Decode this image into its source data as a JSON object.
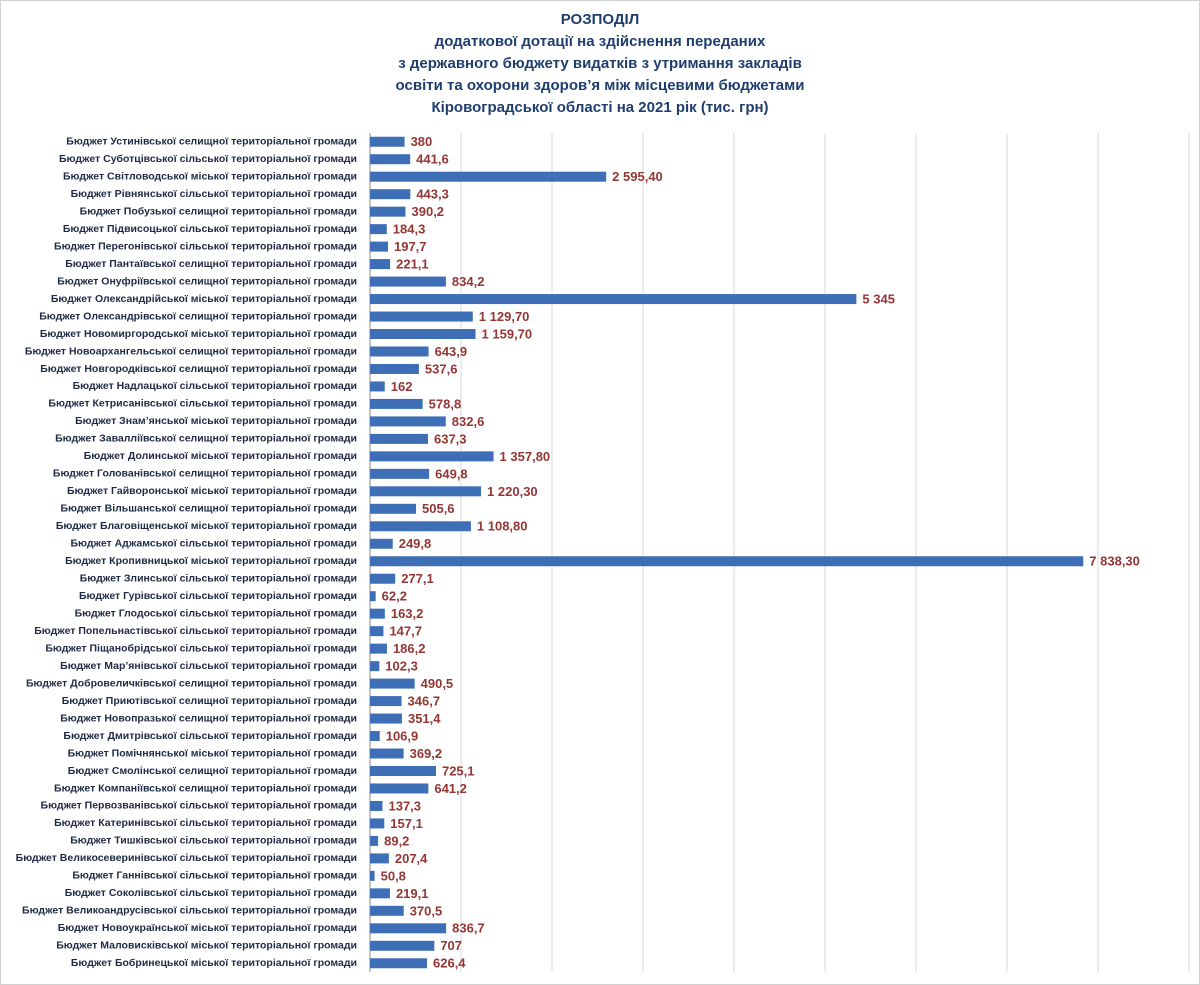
{
  "chart_data": {
    "type": "hbar",
    "title": [
      "РОЗПОДІЛ",
      "додаткової дотації на здійснення переданих",
      "з державного бюджету видатків з утримання закладів",
      "освіти та охорони здоров’я між місцевими бюджетами",
      "Кіровоградської області на 2021 рік (тис. грн)"
    ],
    "categories": [
      "Бюджет Устинівської селищної територіальної громади",
      "Бюджет Суботцівської сільської територіальної громади",
      "Бюджет Світловодської міської територіальної громади",
      "Бюджет Рівнянської сільської територіальної громади",
      "Бюджет Побузької селищної територіальної громади",
      "Бюджет Підвисоцької сільської територіальної громади",
      "Бюджет Перегонівської сільської територіальної громади",
      "Бюджет Пантаївської селищної територіальної громади",
      "Бюджет Онуфріївської селищної територіальної громади",
      "Бюджет Олександрійської міської територіальної громади",
      "Бюджет Олександрівської селищної територіальної громади",
      "Бюджет Новомиргородської міської територіальної громади",
      "Бюджет Новоархангельської селищної територіальної громади",
      "Бюджет Новгородківської селищної територіальної громади",
      "Бюджет Надлацької сільської територіальної громади",
      "Бюджет Кетрисанівської сільської територіальної громади",
      "Бюджет Знам’янської міської територіальної громади",
      "Бюджет Завалліївської селищної територіальної громади",
      "Бюджет Долинської міської територіальної громади",
      "Бюджет Голованівської селищної територіальної громади",
      "Бюджет Гайворонської міської територіальної громади",
      "Бюджет Вільшанської селищної територіальної громади",
      "Бюджет Благовіщенської міської територіальної громади",
      "Бюджет Аджамської сільської територіальної громади",
      "Бюджет Кропивницької міської територіальної громади",
      "Бюджет Злинської сільської територіальної громади",
      "Бюджет Гурівської сільської територіальної громади",
      "Бюджет Глодоської сільської територіальної громади",
      "Бюджет Попельнастівської сільської територіальної громади",
      "Бюджет Піщанобрідської сільської територіальної громади",
      "Бюджет Мар’янівської сільської територіальної громади",
      "Бюджет Добровеличківської селищної територіальної громади",
      "Бюджет Приютівської селищної територіальної громади",
      "Бюджет Новопразької селищної територіальної громади",
      "Бюджет Дмитрівської сільської територіальної громади",
      "Бюджет Помічнянської міської територіальної громади",
      "Бюджет Смолінської селищної територіальної громади",
      "Бюджет Компаніївської селищної територіальної громади",
      "Бюджет Первозванівської сільської територіальної громади",
      "Бюджет Катеринівської сільської територіальної громади",
      "Бюджет Тишківської сільської територіальної громади",
      "Бюджет Великосеверинівської сільської територіальної громади",
      "Бюджет Ганнівської сільської територіальної громади",
      "Бюджет Соколівської сільської територіальної громади",
      "Бюджет Великоандрусівської сільської територіальної громади",
      "Бюджет Новоукраїнської міської територіальної громади",
      "Бюджет Маловисківської міської територіальної громади",
      "Бюджет Бобринецької міської територіальної громади"
    ],
    "values": [
      380,
      441.6,
      2595.4,
      443.3,
      390.2,
      184.3,
      197.7,
      221.1,
      834.2,
      5345,
      1129.7,
      1159.7,
      643.9,
      537.6,
      162,
      578.8,
      832.6,
      637.3,
      1357.8,
      649.8,
      1220.3,
      505.6,
      1108.8,
      249.8,
      7838.3,
      277.1,
      62.2,
      163.2,
      147.7,
      186.2,
      102.3,
      490.5,
      346.7,
      351.4,
      106.9,
      369.2,
      725.1,
      641.2,
      137.3,
      157.1,
      89.2,
      207.4,
      50.8,
      219.1,
      370.5,
      836.7,
      707,
      626.4
    ],
    "value_labels": [
      "380",
      "441,6",
      "2 595,40",
      "443,3",
      "390,2",
      "184,3",
      "197,7",
      "221,1",
      "834,2",
      "5 345",
      "1 129,70",
      "1 159,70",
      "643,9",
      "537,6",
      "162",
      "578,8",
      "832,6",
      "637,3",
      "1 357,80",
      "649,8",
      "1 220,30",
      "505,6",
      "1 108,80",
      "249,8",
      "7 838,30",
      "277,1",
      "62,2",
      "163,2",
      "147,7",
      "186,2",
      "102,3",
      "490,5",
      "346,7",
      "351,4",
      "106,9",
      "369,2",
      "725,1",
      "641,2",
      "137,3",
      "157,1",
      "89,2",
      "207,4",
      "50,8",
      "219,1",
      "370,5",
      "836,7",
      "707",
      "626,4"
    ],
    "color": "#3e6fb6",
    "label_color": "#943634",
    "xlim": [
      0,
      9000
    ],
    "xticks": [
      0,
      1000,
      2000,
      3000,
      4000,
      5000,
      6000,
      7000,
      8000,
      9000
    ],
    "grid": true
  }
}
